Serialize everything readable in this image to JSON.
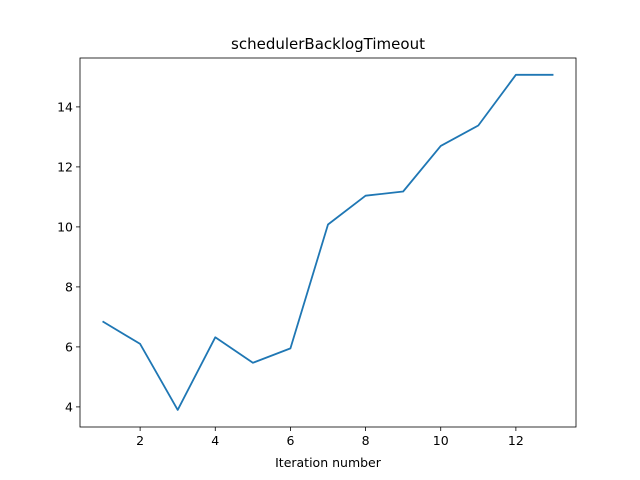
{
  "chart_data": {
    "type": "line",
    "title": "schedulerBacklogTimeout",
    "xlabel": "Iteration number",
    "ylabel": "",
    "xlim": [
      0.4,
      13.6
    ],
    "ylim": [
      3.33,
      15.63
    ],
    "x_ticks": [
      2,
      4,
      6,
      8,
      10,
      12
    ],
    "y_ticks": [
      4,
      6,
      8,
      10,
      12,
      14
    ],
    "grid": false,
    "series": [
      {
        "color": "#1f77b4",
        "x": [
          1,
          2,
          3,
          4,
          5,
          6,
          7,
          8,
          9,
          10,
          11,
          12,
          13
        ],
        "y": [
          6.85,
          6.1,
          3.9,
          6.32,
          5.47,
          5.95,
          10.08,
          11.04,
          11.18,
          12.7,
          13.38,
          15.07,
          15.07
        ]
      }
    ]
  }
}
